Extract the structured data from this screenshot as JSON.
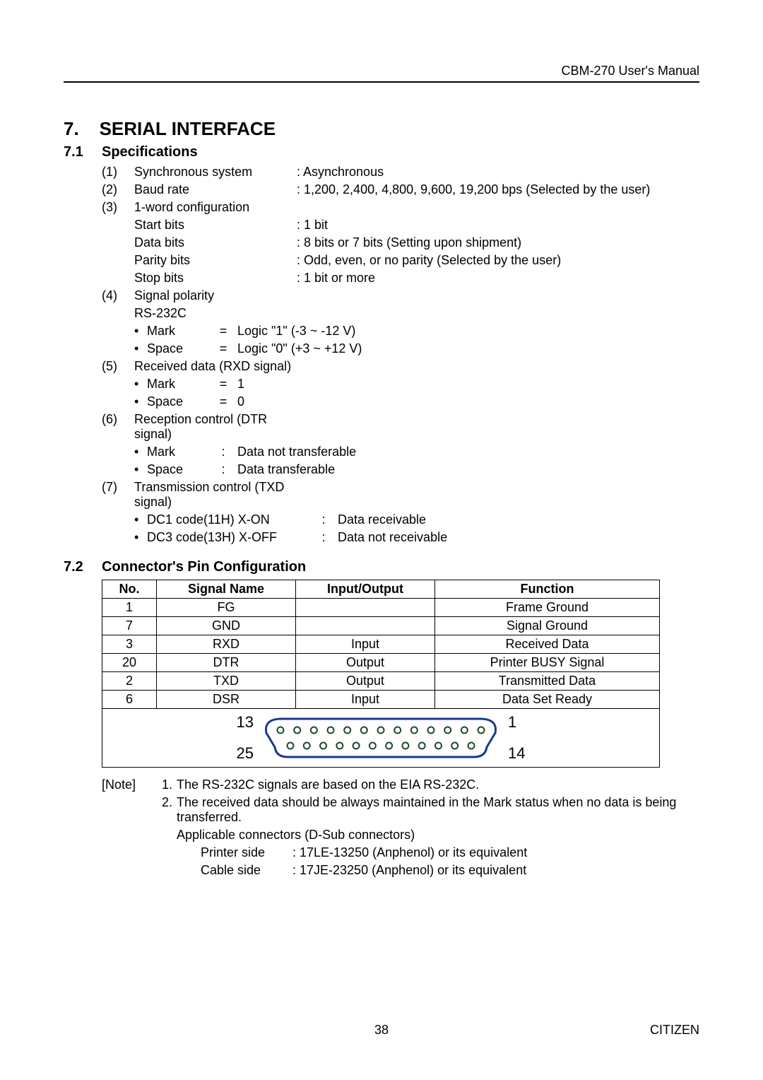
{
  "header": {
    "manual_title": "CBM-270 User's Manual"
  },
  "section": {
    "num": "7.",
    "title": "SERIAL INTERFACE"
  },
  "sub71": {
    "num": "7.1",
    "title": "Specifications"
  },
  "specs": {
    "i1": {
      "idx": "(1)",
      "label": "Synchronous system",
      "val": ": Asynchronous"
    },
    "i2": {
      "idx": "(2)",
      "label": "Baud rate",
      "val": ": 1,200, 2,400, 4,800, 9,600, 19,200 bps (Selected by the user)"
    },
    "i3": {
      "idx": "(3)",
      "label": "1-word configuration",
      "val": ""
    },
    "i3a": {
      "label": "Start bits",
      "val": ": 1 bit"
    },
    "i3b": {
      "label": "Data bits",
      "val": ": 8 bits or 7 bits (Setting upon shipment)"
    },
    "i3c": {
      "label": "Parity bits",
      "val": ": Odd, even, or no parity (Selected by the user)"
    },
    "i3d": {
      "label": "Stop bits",
      "val": ": 1 bit or more"
    },
    "i4": {
      "idx": "(4)",
      "label": "Signal polarity"
    },
    "i4rs": "RS-232C",
    "i4a": {
      "sym": "•",
      "label": "Mark",
      "eq": "=",
      "val": "Logic \"1\" (-3 ~ -12 V)"
    },
    "i4b": {
      "sym": "•",
      "label": "Space",
      "eq": "=",
      "val": "Logic \"0\" (+3 ~ +12 V)"
    },
    "i5": {
      "idx": "(5)",
      "label": "Received data (RXD signal)"
    },
    "i5a": {
      "sym": "•",
      "label": "Mark",
      "eq": "=",
      "val": "1"
    },
    "i5b": {
      "sym": "•",
      "label": "Space",
      "eq": "=",
      "val": "0"
    },
    "i6": {
      "idx": "(6)",
      "label": "Reception control (DTR signal)"
    },
    "i6a": {
      "sym": "•",
      "label": "Mark",
      "colon": ":",
      "val": "Data not transferable"
    },
    "i6b": {
      "sym": "•",
      "label": "Space",
      "colon": ":",
      "val": "Data transferable"
    },
    "i7": {
      "idx": "(7)",
      "label": "Transmission control (TXD signal)"
    },
    "i7a": {
      "sym": "•",
      "label": "DC1 code(11H) X-ON",
      "colon": ":",
      "val": "Data receivable"
    },
    "i7b": {
      "sym": "•",
      "label": "DC3 code(13H) X-OFF",
      "colon": ":",
      "val": "Data not receivable"
    }
  },
  "sub72": {
    "num": "7.2",
    "title": "Connector's Pin Configuration"
  },
  "pin_table": {
    "headers": {
      "no": "No.",
      "sig": "Signal Name",
      "io": "Input/Output",
      "fn": "Function"
    },
    "rows": [
      {
        "no": "1",
        "sig": "FG",
        "io": "",
        "fn": "Frame Ground"
      },
      {
        "no": "7",
        "sig": "GND",
        "io": "",
        "fn": "Signal Ground"
      },
      {
        "no": "3",
        "sig": "RXD",
        "io": "Input",
        "fn": "Received Data"
      },
      {
        "no": "20",
        "sig": "DTR",
        "io": "Output",
        "fn": "Printer BUSY Signal"
      },
      {
        "no": "2",
        "sig": "TXD",
        "io": "Output",
        "fn": "Transmitted Data"
      },
      {
        "no": "6",
        "sig": "DSR",
        "io": "Input",
        "fn": "Data Set Ready"
      }
    ],
    "diagram": {
      "top_left": "13",
      "top_right": "1",
      "bot_left": "25",
      "bot_right": "14",
      "top_pins": 13,
      "bot_pins": 12,
      "outline_color": "#1a3a8f",
      "pin_color": "#1a4a2a"
    }
  },
  "notes": {
    "prefix": "[Note]",
    "n1": {
      "num": "1.",
      "text": "The RS-232C signals are based on the EIA RS-232C."
    },
    "n2": {
      "num": "2.",
      "text": "The received data should be always maintained in the Mark status when no data is being transferred."
    },
    "n2b": "Applicable connectors (D-Sub connectors)",
    "n2c": {
      "label": "Printer side",
      "val": ": 17LE-13250 (Anphenol) or its equivalent"
    },
    "n2d": {
      "label": "Cable side",
      "val": ": 17JE-23250 (Anphenol) or its equivalent"
    }
  },
  "footer": {
    "page": "38",
    "brand": "CITIZEN"
  }
}
